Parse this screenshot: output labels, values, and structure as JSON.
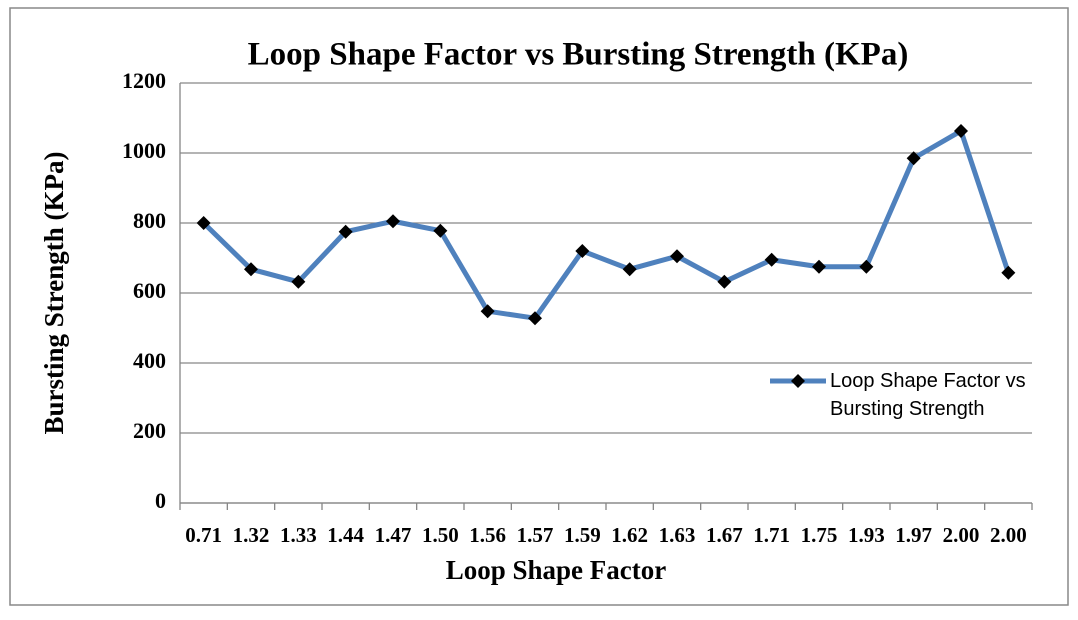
{
  "chart_data": {
    "type": "line",
    "title": "Loop Shape Factor vs Bursting Strength (KPa)",
    "x_label": "Loop Shape Factor",
    "y_label": "Bursting Strength (KPa)",
    "categories": [
      "0.71",
      "1.32",
      "1.33",
      "1.44",
      "1.47",
      "1.50",
      "1.56",
      "1.57",
      "1.59",
      "1.62",
      "1.63",
      "1.67",
      "1.71",
      "1.75",
      "1.93",
      "1.97",
      "2.00",
      "2.00"
    ],
    "series": [
      {
        "name": "Loop Shape Factor vs Bursting Strength",
        "color": "#4f81bd",
        "values": [
          800,
          668,
          632,
          775,
          805,
          778,
          548,
          528,
          720,
          668,
          705,
          632,
          695,
          675,
          675,
          985,
          1063,
          658
        ]
      }
    ],
    "ylim": [
      0,
      1200
    ],
    "yticks": [
      0,
      200,
      400,
      600,
      800,
      1000,
      1200
    ],
    "grid": true,
    "legend": "right"
  }
}
